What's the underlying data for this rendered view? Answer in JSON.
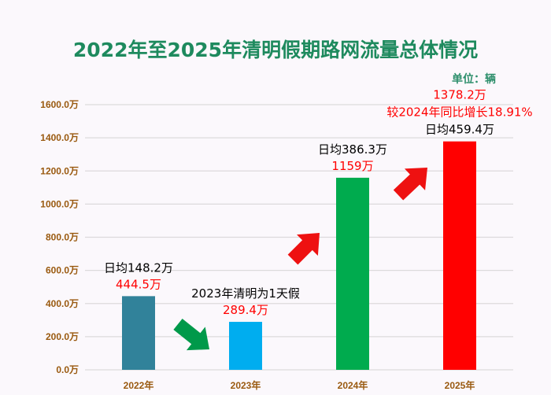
{
  "chart_data": {
    "type": "bar",
    "title": "2022年至2025年清明假期路网流量总体情况",
    "unit_label": "单位：辆",
    "categories": [
      "2022年",
      "2023年",
      "2024年",
      "2025年"
    ],
    "values": [
      444.5,
      289.4,
      1159,
      1378.2
    ],
    "value_labels": [
      "444.5万",
      "289.4万",
      "1159万",
      "1378.2万"
    ],
    "bar_colors": [
      "#31829a",
      "#00adef",
      "#00ab4e",
      "#ff0000"
    ],
    "annotations": [
      [
        "日均148.2万"
      ],
      [
        "2023年清明为1天假"
      ],
      [
        "日均386.3万"
      ],
      [
        "较2024年同比增长18.91%",
        "日均459.4万"
      ]
    ],
    "ylim": [
      0,
      1600
    ],
    "yticks": [
      0,
      200,
      400,
      600,
      800,
      1000,
      1200,
      1400,
      1600
    ],
    "ytick_labels": [
      "0.0万",
      "200.0万",
      "400.0万",
      "600.0万",
      "800.0万",
      "1000.0万",
      "1200.0万",
      "1400.0万",
      "1600.0万"
    ],
    "grid": true,
    "trend_arrows": [
      {
        "between": [
          "2022年",
          "2023年"
        ],
        "direction": "down",
        "color": "#00994a"
      },
      {
        "between": [
          "2023年",
          "2024年"
        ],
        "direction": "up",
        "color": "#ee1111"
      },
      {
        "between": [
          "2024年",
          "2025年"
        ],
        "direction": "up",
        "color": "#ee1111"
      }
    ]
  }
}
